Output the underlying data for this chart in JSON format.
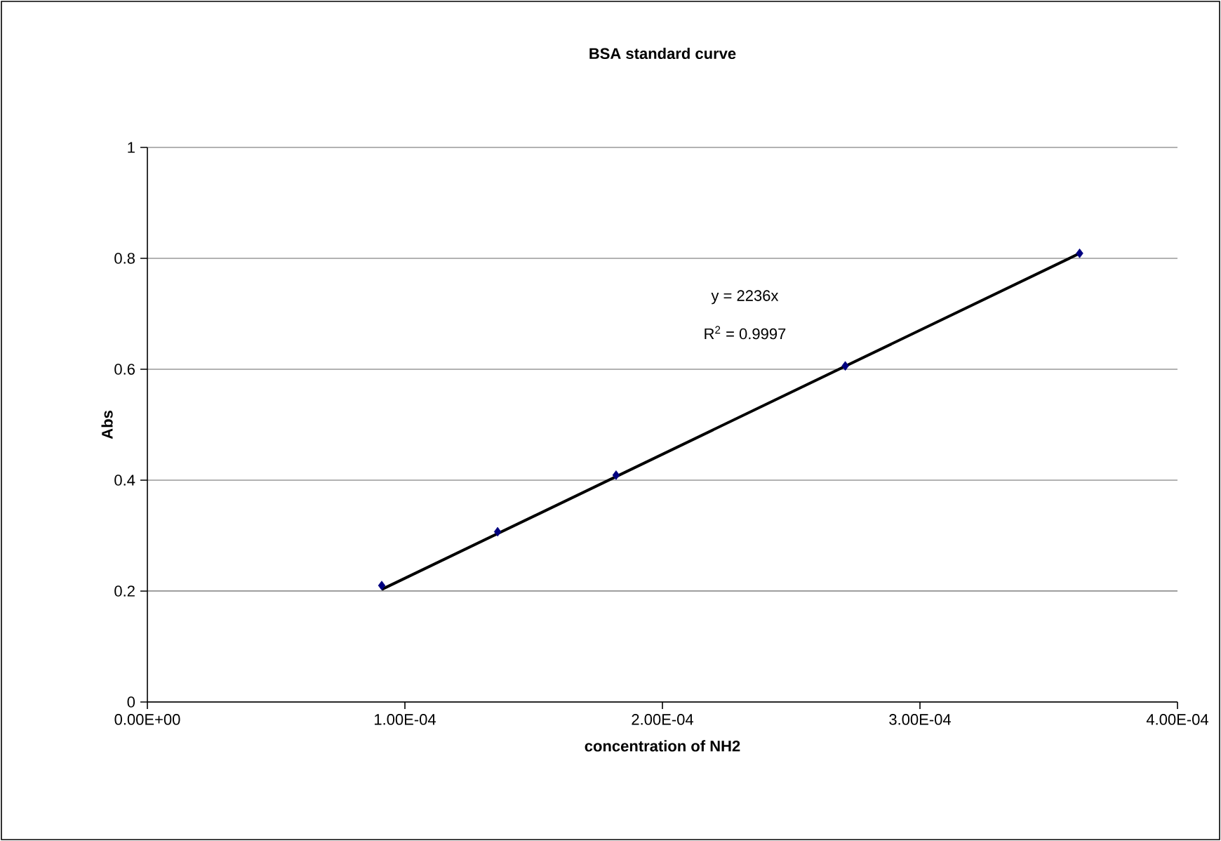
{
  "chart_data": {
    "type": "scatter",
    "title": "BSA standard curve",
    "xlabel": "concentration of NH2",
    "ylabel": "Abs",
    "xlim": [
      0,
      0.0004
    ],
    "xticks": [
      {
        "value": 0,
        "label": "0.00E+00"
      },
      {
        "value": 0.0001,
        "label": "1.00E-04"
      },
      {
        "value": 0.0002,
        "label": "2.00E-04"
      },
      {
        "value": 0.0003,
        "label": "3.00E-04"
      },
      {
        "value": 0.0004,
        "label": "4.00E-04"
      }
    ],
    "ylim": [
      0,
      1
    ],
    "yticks": [
      0,
      0.2,
      0.4,
      0.6,
      0.8,
      1
    ],
    "grid": "y",
    "series": [
      {
        "marker": "diamond",
        "color": "#000080",
        "x": [
          9.1e-05,
          0.000136,
          0.000182,
          0.000271,
          0.000362
        ],
        "values": [
          0.21,
          0.307,
          0.409,
          0.606,
          0.809
        ]
      },
      {
        "type": "line",
        "marker": "none",
        "color": "#000000",
        "x": [
          9.1e-05,
          0.000362
        ],
        "values": [
          0.203,
          0.809
        ]
      }
    ],
    "annotations": [
      "y = 2236x",
      "R$^{2}$ = 0.9997"
    ]
  }
}
